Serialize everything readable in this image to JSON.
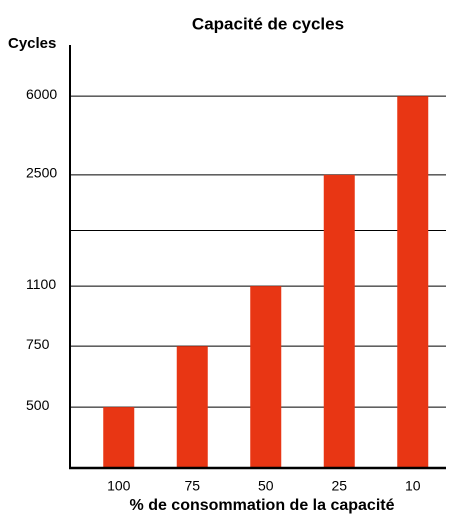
{
  "chart_data": {
    "type": "bar",
    "title": "Capacité de cycles",
    "y_label": "Cycles",
    "x_label": "% de consommation de la capacité",
    "categories": [
      "100",
      "75",
      "50",
      "25",
      "10"
    ],
    "values": [
      500,
      750,
      1100,
      2500,
      6000
    ],
    "color": "#e83614",
    "ylim": [
      0,
      8000
    ],
    "yticks": [
      500,
      750,
      1100,
      2500,
      6000
    ],
    "grid": true
  }
}
